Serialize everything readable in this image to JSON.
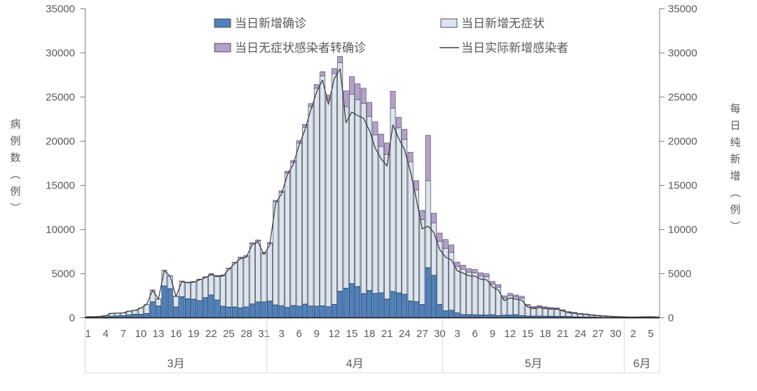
{
  "chart_data": {
    "type": "bar+line",
    "title": "",
    "description": "Stacked daily COVID case bars (confirmed, asymptomatic, asymptomatic-converted-to-confirmed) with net-new-infections line, 2022-03-01 to 2022-06-06",
    "y_axis_left": {
      "label": "病例数（例）",
      "min": 0,
      "max": 35000,
      "step": 5000
    },
    "y_axis_right": {
      "label": "每日纯新增（例）",
      "min": 0,
      "max": 35000,
      "step": 5000
    },
    "x_axis": {
      "months": [
        {
          "label": "3月",
          "days": 31,
          "tick_days": [
            1,
            4,
            7,
            10,
            13,
            16,
            19,
            22,
            25,
            28,
            31
          ]
        },
        {
          "label": "4月",
          "days": 30,
          "tick_days": [
            3,
            6,
            9,
            12,
            15,
            18,
            21,
            24,
            27,
            30
          ]
        },
        {
          "label": "5月",
          "days": 31,
          "tick_days": [
            3,
            6,
            9,
            12,
            15,
            18,
            21,
            24,
            27,
            30
          ]
        },
        {
          "label": "6月",
          "days": 6,
          "tick_days": [
            2,
            5
          ]
        }
      ]
    },
    "legend": [
      {
        "name": "当日新增确诊",
        "type": "bar",
        "color": "#4f81bd"
      },
      {
        "name": "当日新增无症状",
        "type": "bar",
        "color": "#dbe5f1"
      },
      {
        "name": "当日无症状感染者转确诊",
        "type": "bar",
        "color": "#b2a2c7"
      },
      {
        "name": "当日实际新增感染者",
        "type": "line",
        "color": "#595959"
      }
    ],
    "series": [
      {
        "name": "当日新增确诊",
        "color": "#4f81bd",
        "stroke": "#17375e",
        "values": [
          71,
          54,
          60,
          102,
          175,
          214,
          233,
          322,
          402,
          397,
          476,
          1807,
          1337,
          3602,
          3290,
          1226,
          2388,
          2157,
          2102,
          1947,
          2281,
          2591,
          2010,
          1301,
          1217,
          1219,
          1126,
          1228,
          1565,
          1803,
          1787,
          1886,
          1455,
          1366,
          1173,
          1383,
          1323,
          1540,
          1334,
          1318,
          1351,
          1251,
          1513,
          2999,
          3351,
          3867,
          3529,
          2742,
          3084,
          2761,
          2830,
          2119,
          2971,
          2830,
          2666,
          1908,
          1818,
          1500,
          5675,
          4800,
          1500,
          788,
          851,
          545,
          360,
          350,
          345,
          319,
          322,
          349,
          243,
          302,
          312,
          347,
          252,
          191,
          187,
          199,
          181,
          183,
          170,
          157,
          141,
          102,
          94,
          90,
          80,
          60,
          50,
          30,
          25,
          20,
          18,
          15,
          16,
          20,
          25,
          19
        ]
      },
      {
        "name": "当日新增无症状",
        "color": "#dbe5f1",
        "stroke": "#404040",
        "values": [
          60,
          64,
          101,
          130,
          330,
          312,
          322,
          435,
          435,
          703,
          1048,
          1315,
          788,
          1768,
          1442,
          1206,
          1742,
          1836,
          1968,
          2384,
          2313,
          2346,
          2722,
          3489,
          4333,
          4996,
          5658,
          5728,
          6825,
          6900,
          5500,
          6501,
          11691,
          12834,
          15227,
          16217,
          18477,
          20060,
          22566,
          24682,
          26049,
          23449,
          26137,
          25900,
          20549,
          21433,
          21171,
          21558,
          19716,
          17939,
          16570,
          16381,
          20779,
          18670,
          17534,
          15742,
          12662,
          9620,
          9845,
          5950,
          7150,
          7084,
          6551,
          5260,
          5140,
          4800,
          4750,
          4411,
          4325,
          3451,
          3207,
          1905,
          2195,
          1992,
          1961,
          1182,
          968,
          1077,
          966,
          887,
          873,
          683,
          498,
          460,
          365,
          313,
          241,
          198,
          170,
          146,
          112,
          96,
          70,
          61,
          77,
          87,
          97,
          77
        ]
      },
      {
        "name": "当日无症状感染者转确诊",
        "color": "#b2a2c7",
        "stroke": "#5f497a",
        "values": [
          0,
          0,
          0,
          0,
          0,
          0,
          0,
          0,
          0,
          0,
          0,
          10,
          10,
          20,
          25,
          30,
          35,
          40,
          45,
          50,
          55,
          60,
          65,
          70,
          75,
          80,
          85,
          90,
          100,
          110,
          120,
          140,
          160,
          180,
          200,
          220,
          260,
          310,
          360,
          420,
          470,
          520,
          580,
          700,
          1800,
          2000,
          1800,
          1700,
          1600,
          1500,
          1400,
          1300,
          1900,
          1200,
          1150,
          1100,
          1050,
          1050,
          5150,
          1100,
          950,
          1000,
          850,
          500,
          450,
          400,
          380,
          360,
          340,
          320,
          300,
          280,
          260,
          240,
          220,
          150,
          120,
          110,
          100,
          90,
          80,
          70,
          60,
          50,
          40,
          35,
          30,
          25,
          20,
          15,
          10,
          8,
          4,
          3,
          3,
          3,
          3,
          2
        ]
      }
    ],
    "line_series": {
      "name": "当日实际新增感染者",
      "color": "#404040",
      "formula": "当日新增确诊 + 当日新增无症状 − 当日无症状感染者转确诊",
      "values": [
        131,
        118,
        161,
        232,
        505,
        526,
        555,
        757,
        837,
        1100,
        1524,
        3112,
        2115,
        5350,
        4707,
        2402,
        4095,
        3953,
        4025,
        4281,
        4539,
        4877,
        4667,
        4720,
        5475,
        6135,
        6699,
        6866,
        8290,
        8593,
        7167,
        8247,
        12986,
        14020,
        16200,
        17380,
        19540,
        21290,
        23540,
        25580,
        26930,
        24180,
        27070,
        28199,
        22100,
        23300,
        22900,
        22600,
        21200,
        19200,
        18000,
        17200,
        21850,
        20300,
        19050,
        16550,
        13430,
        10070,
        10370,
        9650,
        7700,
        6872,
        6552,
        5305,
        5050,
        4750,
        4715,
        4370,
        4307,
        3480,
        3150,
        1927,
        2247,
        2099,
        1993,
        1223,
        1035,
        1166,
        1047,
        980,
        963,
        770,
        579,
        512,
        419,
        368,
        291,
        233,
        200,
        161,
        127,
        108,
        84,
        73,
        90,
        104,
        119,
        94
      ]
    },
    "layout_hints": {
      "grid": "off",
      "legend_position": "top, two columns, two rows",
      "plot_background": "#ffffff",
      "axis_color": "#808080",
      "text_color": "#595959",
      "divider_color": "#d9d9d9",
      "baseline_color": "#262626"
    }
  }
}
